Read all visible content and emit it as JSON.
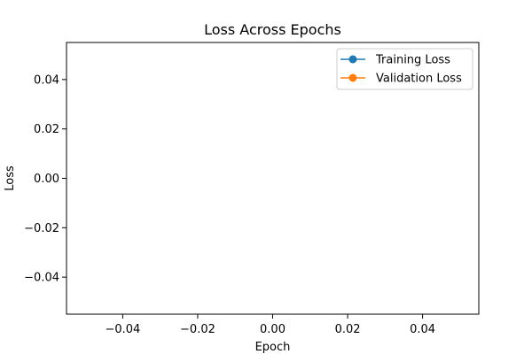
{
  "chart_data": {
    "type": "line",
    "title": "Loss Across Epochs",
    "xlabel": "Epoch",
    "ylabel": "Loss",
    "xlim": [
      -0.055,
      0.055
    ],
    "ylim": [
      -0.055,
      0.055
    ],
    "x_ticks": [
      -0.04,
      -0.02,
      0.0,
      0.02,
      0.04
    ],
    "x_tick_labels": [
      "−0.04",
      "−0.02",
      "0.00",
      "0.02",
      "0.04"
    ],
    "y_ticks": [
      -0.04,
      -0.02,
      0.0,
      0.02,
      0.04
    ],
    "y_tick_labels": [
      "−0.04",
      "−0.02",
      "0.00",
      "0.02",
      "0.04"
    ],
    "grid": false,
    "legend_position": "top-right",
    "series": [
      {
        "name": "Training Loss",
        "color": "#1f77b4",
        "marker": "circle",
        "x": [],
        "y": []
      },
      {
        "name": "Validation Loss",
        "color": "#ff7f0e",
        "marker": "circle",
        "x": [],
        "y": []
      }
    ]
  }
}
